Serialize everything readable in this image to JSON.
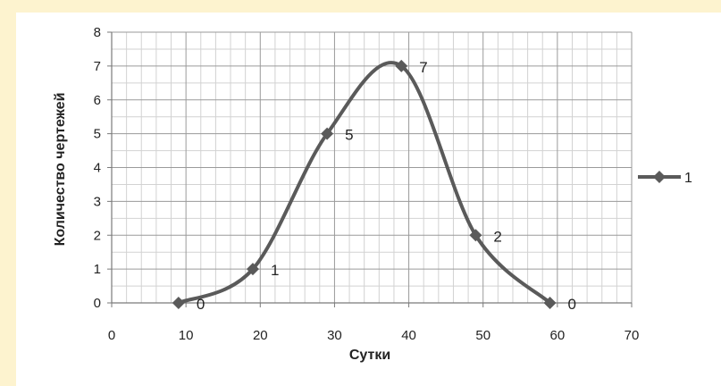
{
  "chart_data": {
    "type": "line",
    "title": "",
    "xlabel": "Сутки",
    "ylabel": "Количество чертежей",
    "xlim": [
      0,
      70
    ],
    "ylim": [
      0,
      8
    ],
    "x_ticks": [
      "0",
      "10",
      "20",
      "30",
      "40",
      "50",
      "60",
      "70"
    ],
    "y_ticks": [
      "0",
      "1",
      "2",
      "3",
      "4",
      "5",
      "6",
      "7",
      "8"
    ],
    "grid": true,
    "smooth": true,
    "legend_position": "right",
    "series": [
      {
        "name": "1",
        "color": "#5a5a5a",
        "marker": "diamond",
        "x": [
          9,
          19,
          29,
          39,
          49,
          59
        ],
        "y": [
          0,
          1,
          5,
          7,
          2,
          0
        ],
        "labels": [
          "0",
          "1",
          "5",
          "7",
          "2",
          "0"
        ]
      }
    ]
  }
}
